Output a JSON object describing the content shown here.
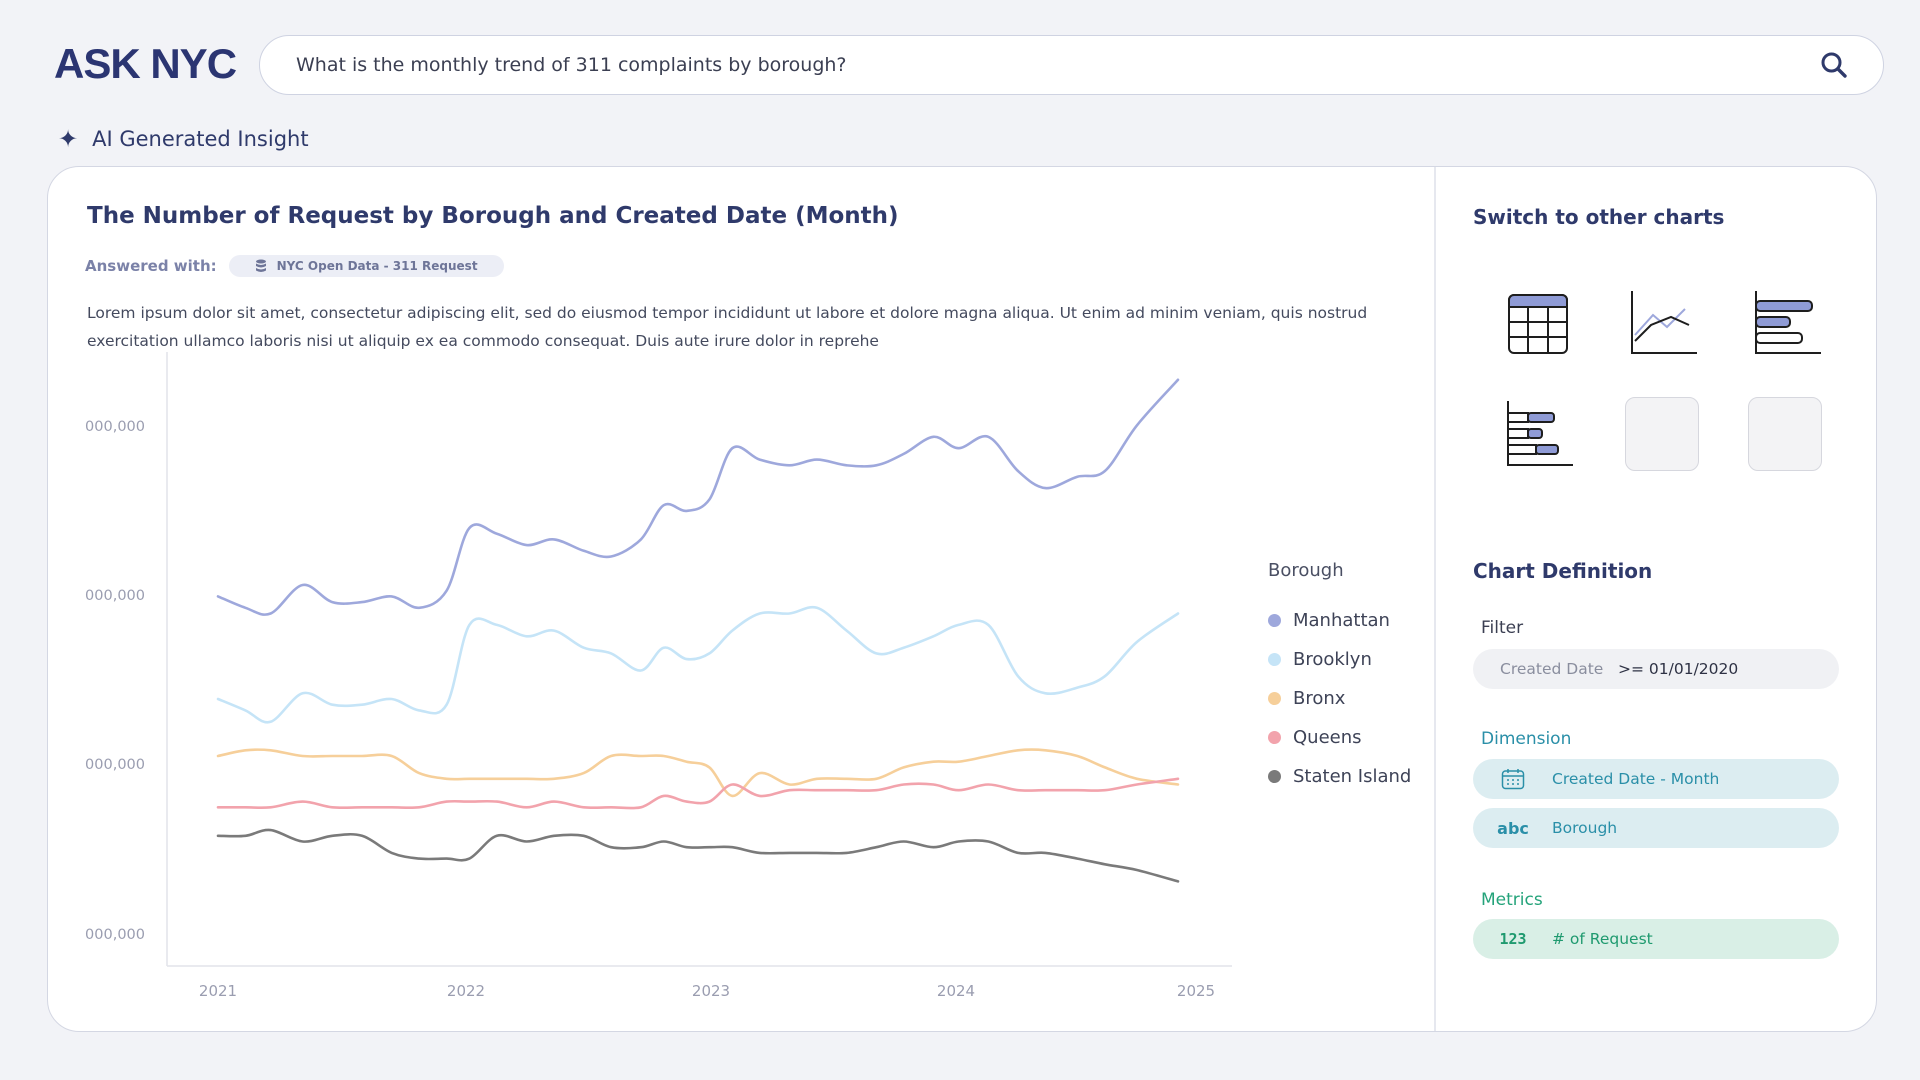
{
  "app": {
    "logo": "ASK NYC"
  },
  "search": {
    "query": "What is the monthly trend of 311 complaints by borough?"
  },
  "insight": {
    "label": "AI Generated Insight"
  },
  "main": {
    "title": "The Number of Request by Borough and Created Date (Month)",
    "answered_label": "Answered with:",
    "source": "NYC Open Data - 311 Request",
    "description": "Lorem ipsum dolor sit amet, consectetur adipiscing elit, sed do eiusmod tempor incididunt ut labore et dolore magna aliqua. Ut enim ad minim veniam, quis nostrud exercitation ullamco laboris nisi ut aliquip ex ea commodo consequat. Duis aute irure dolor in reprehe"
  },
  "chart_data": {
    "type": "line",
    "title": "",
    "xlabel": "",
    "ylabel": "",
    "x_ticks": [
      "2021",
      "2022",
      "2023",
      "2024",
      "2025"
    ],
    "y_ticks": [
      "000,000",
      "000,000",
      "000,000",
      "000,000"
    ],
    "legend_title": "Borough",
    "legend_position": "right",
    "grid": false,
    "x_range": [
      2020.9,
      2025.1
    ],
    "y_range": [
      0,
      100
    ],
    "series": [
      {
        "name": "Manhattan",
        "color": "#9ea8dc",
        "x": [
          2020.9,
          2021.02,
          2021.13,
          2021.27,
          2021.4,
          2021.53,
          2021.66,
          2021.78,
          2021.9,
          2022.0,
          2022.12,
          2022.25,
          2022.37,
          2022.5,
          2022.62,
          2022.75,
          2022.85,
          2022.95,
          2023.05,
          2023.15,
          2023.27,
          2023.4,
          2023.52,
          2023.65,
          2023.78,
          2023.9,
          2024.03,
          2024.14,
          2024.27,
          2024.4,
          2024.52,
          2024.66,
          2024.78,
          2024.92,
          2025.1
        ],
        "y": [
          58,
          56,
          55,
          60,
          57,
          57,
          58,
          56,
          59,
          70,
          69,
          67,
          68,
          66,
          65,
          68,
          74,
          73,
          75,
          84,
          82,
          81,
          82,
          81,
          81,
          83,
          86,
          84,
          86,
          80,
          77,
          79,
          80,
          88,
          96
        ]
      },
      {
        "name": "Brooklyn",
        "color": "#c5e4f7",
        "x": [
          2020.9,
          2021.02,
          2021.13,
          2021.27,
          2021.4,
          2021.53,
          2021.66,
          2021.78,
          2021.9,
          2022.0,
          2022.12,
          2022.25,
          2022.37,
          2022.5,
          2022.62,
          2022.75,
          2022.85,
          2022.95,
          2023.05,
          2023.15,
          2023.27,
          2023.4,
          2023.52,
          2023.65,
          2023.78,
          2023.9,
          2024.03,
          2024.14,
          2024.27,
          2024.4,
          2024.52,
          2024.66,
          2024.78,
          2024.92,
          2025.1
        ],
        "y": [
          40,
          38,
          36,
          41,
          39,
          39,
          40,
          38,
          39,
          53,
          53,
          51,
          52,
          49,
          48,
          45,
          49,
          47,
          48,
          52,
          55,
          55,
          56,
          52,
          48,
          49,
          51,
          53,
          53,
          44,
          41,
          42,
          44,
          50,
          55
        ]
      },
      {
        "name": "Bronx",
        "color": "#f6cf9a",
        "x": [
          2020.9,
          2021.02,
          2021.13,
          2021.27,
          2021.4,
          2021.53,
          2021.66,
          2021.78,
          2021.9,
          2022.0,
          2022.12,
          2022.25,
          2022.37,
          2022.5,
          2022.62,
          2022.75,
          2022.85,
          2022.95,
          2023.05,
          2023.15,
          2023.27,
          2023.4,
          2023.52,
          2023.65,
          2023.78,
          2023.9,
          2024.03,
          2024.14,
          2024.27,
          2024.4,
          2024.52,
          2024.66,
          2024.78,
          2024.92,
          2025.1
        ],
        "y": [
          30,
          31,
          31,
          30,
          30,
          30,
          30,
          27,
          26,
          26,
          26,
          26,
          26,
          27,
          30,
          30,
          30,
          29,
          28,
          23,
          27,
          25,
          26,
          26,
          26,
          28,
          29,
          29,
          30,
          31,
          31,
          30,
          28,
          26,
          25
        ]
      },
      {
        "name": "Queens",
        "color": "#f2a3ac",
        "x": [
          2020.9,
          2021.02,
          2021.13,
          2021.27,
          2021.4,
          2021.53,
          2021.66,
          2021.78,
          2021.9,
          2022.0,
          2022.12,
          2022.25,
          2022.37,
          2022.5,
          2022.62,
          2022.75,
          2022.85,
          2022.95,
          2023.05,
          2023.15,
          2023.27,
          2023.4,
          2023.52,
          2023.65,
          2023.78,
          2023.9,
          2024.03,
          2024.14,
          2024.27,
          2024.4,
          2024.52,
          2024.66,
          2024.78,
          2024.92,
          2025.1
        ],
        "y": [
          21,
          21,
          21,
          22,
          21,
          21,
          21,
          21,
          22,
          22,
          22,
          21,
          22,
          21,
          21,
          21,
          23,
          22,
          22,
          25,
          23,
          24,
          24,
          24,
          24,
          25,
          25,
          24,
          25,
          24,
          24,
          24,
          24,
          25,
          26
        ]
      },
      {
        "name": "Staten Island",
        "color": "#7a7a7a",
        "x": [
          2020.9,
          2021.02,
          2021.13,
          2021.27,
          2021.4,
          2021.53,
          2021.66,
          2021.78,
          2021.9,
          2022.0,
          2022.12,
          2022.25,
          2022.37,
          2022.5,
          2022.62,
          2022.75,
          2022.85,
          2022.95,
          2023.05,
          2023.15,
          2023.27,
          2023.4,
          2023.52,
          2023.65,
          2023.78,
          2023.9,
          2024.03,
          2024.14,
          2024.27,
          2024.4,
          2024.52,
          2024.66,
          2024.78,
          2024.92,
          2025.1
        ],
        "y": [
          16,
          16,
          17,
          15,
          16,
          16,
          13,
          12,
          12,
          12,
          16,
          15,
          16,
          16,
          14,
          14,
          15,
          14,
          14,
          14,
          13,
          13,
          13,
          13,
          14,
          15,
          14,
          15,
          15,
          13,
          13,
          12,
          11,
          10,
          8
        ]
      }
    ]
  },
  "right_panel": {
    "switch_title": "Switch to other charts",
    "chart_options": [
      "table-icon",
      "line-chart-icon",
      "bar-chart-icon",
      "stacked-bar-icon"
    ],
    "definition_title": "Chart Definition",
    "filter_label": "Filter",
    "filter": {
      "field": "Created Date",
      "value": ">= 01/01/2020"
    },
    "dimension_label": "Dimension",
    "dimensions": [
      {
        "icon": "calendar-icon",
        "label": "Created Date - Month"
      },
      {
        "icon": "abc",
        "label": "Borough"
      }
    ],
    "metrics_label": "Metrics",
    "metrics": [
      {
        "icon": "123",
        "label": "# of Request"
      }
    ],
    "colors": {
      "dimension": "#2a8fa8",
      "metric": "#1f9a6f",
      "accent": "#2f3a6b"
    }
  }
}
